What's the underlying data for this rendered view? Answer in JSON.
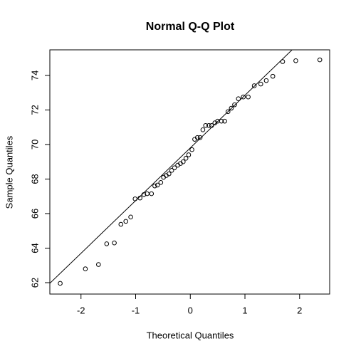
{
  "chart_data": {
    "type": "scatter",
    "title": "Normal Q-Q Plot",
    "x_label": "Theoretical Quantiles",
    "y_label": "Sample Quantiles",
    "x": [
      -2.38,
      -1.92,
      -1.68,
      -1.53,
      -1.39,
      -1.27,
      -1.18,
      -1.09,
      -1.01,
      -0.92,
      -0.85,
      -0.79,
      -0.71,
      -0.65,
      -0.6,
      -0.54,
      -0.49,
      -0.44,
      -0.39,
      -0.34,
      -0.29,
      -0.23,
      -0.18,
      -0.13,
      -0.08,
      -0.03,
      0.03,
      0.08,
      0.13,
      0.18,
      0.23,
      0.28,
      0.34,
      0.39,
      0.45,
      0.5,
      0.57,
      0.63,
      0.69,
      0.75,
      0.81,
      0.88,
      0.97,
      1.06,
      1.17,
      1.29,
      1.39,
      1.51,
      1.69,
      1.93,
      2.37
    ],
    "values": [
      61.96,
      62.8,
      63.05,
      64.25,
      64.3,
      65.38,
      65.55,
      65.8,
      66.85,
      66.9,
      67.1,
      67.15,
      67.15,
      67.6,
      67.65,
      67.8,
      68.1,
      68.2,
      68.3,
      68.5,
      68.65,
      68.8,
      68.9,
      69.0,
      69.2,
      69.4,
      69.7,
      70.3,
      70.4,
      70.4,
      70.85,
      71.1,
      71.1,
      71.1,
      71.25,
      71.35,
      71.35,
      71.35,
      71.9,
      72.1,
      72.3,
      72.65,
      72.75,
      72.75,
      73.4,
      73.5,
      73.7,
      73.95,
      74.8,
      74.85,
      74.9
    ],
    "color": "#000000",
    "reference_line": {
      "intercept": 69.8,
      "slope": 3.05
    },
    "xlim": [
      -2.57,
      2.55
    ],
    "ylim": [
      61.34,
      75.48
    ],
    "xticks": [
      -2,
      -1,
      0,
      1,
      2
    ],
    "yticks": [
      62,
      64,
      66,
      68,
      70,
      72,
      74
    ]
  }
}
